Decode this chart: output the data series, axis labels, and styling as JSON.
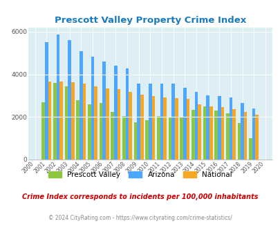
{
  "title": "Prescott Valley Property Crime Index",
  "years": [
    2000,
    2001,
    2002,
    2003,
    2004,
    2005,
    2006,
    2007,
    2008,
    2009,
    2010,
    2011,
    2012,
    2013,
    2014,
    2015,
    2016,
    2017,
    2018,
    2019,
    2020
  ],
  "prescott_valley": [
    0,
    2700,
    3580,
    3430,
    2780,
    2580,
    2650,
    2230,
    2050,
    1750,
    1850,
    2030,
    1960,
    1980,
    2340,
    2490,
    2310,
    2170,
    1720,
    1010,
    0
  ],
  "arizona": [
    0,
    5520,
    5870,
    5620,
    5080,
    4820,
    4610,
    4390,
    4280,
    3560,
    3560,
    3570,
    3560,
    3370,
    3160,
    3020,
    2990,
    2900,
    2660,
    2400,
    0
  ],
  "national": [
    0,
    3670,
    3660,
    3620,
    3560,
    3440,
    3340,
    3290,
    3170,
    3040,
    2980,
    2920,
    2880,
    2840,
    2600,
    2490,
    2470,
    2370,
    2230,
    2110,
    0
  ],
  "bar_colors": {
    "prescott_valley": "#8dc63f",
    "arizona": "#4da6ff",
    "national": "#f5a623"
  },
  "plot_bg": "#ddeef5",
  "ylim": [
    0,
    6200
  ],
  "yticks": [
    0,
    2000,
    4000,
    6000
  ],
  "footnote": "Crime Index corresponds to incidents per 100,000 inhabitants",
  "copyright": "© 2024 CityRating.com - https://www.cityrating.com/crime-statistics/",
  "title_color": "#1a7abf",
  "footnote_color": "#cc0000",
  "copyright_color": "#888888",
  "legend_labels": [
    "Prescott Valley",
    "Arizona",
    "National"
  ]
}
